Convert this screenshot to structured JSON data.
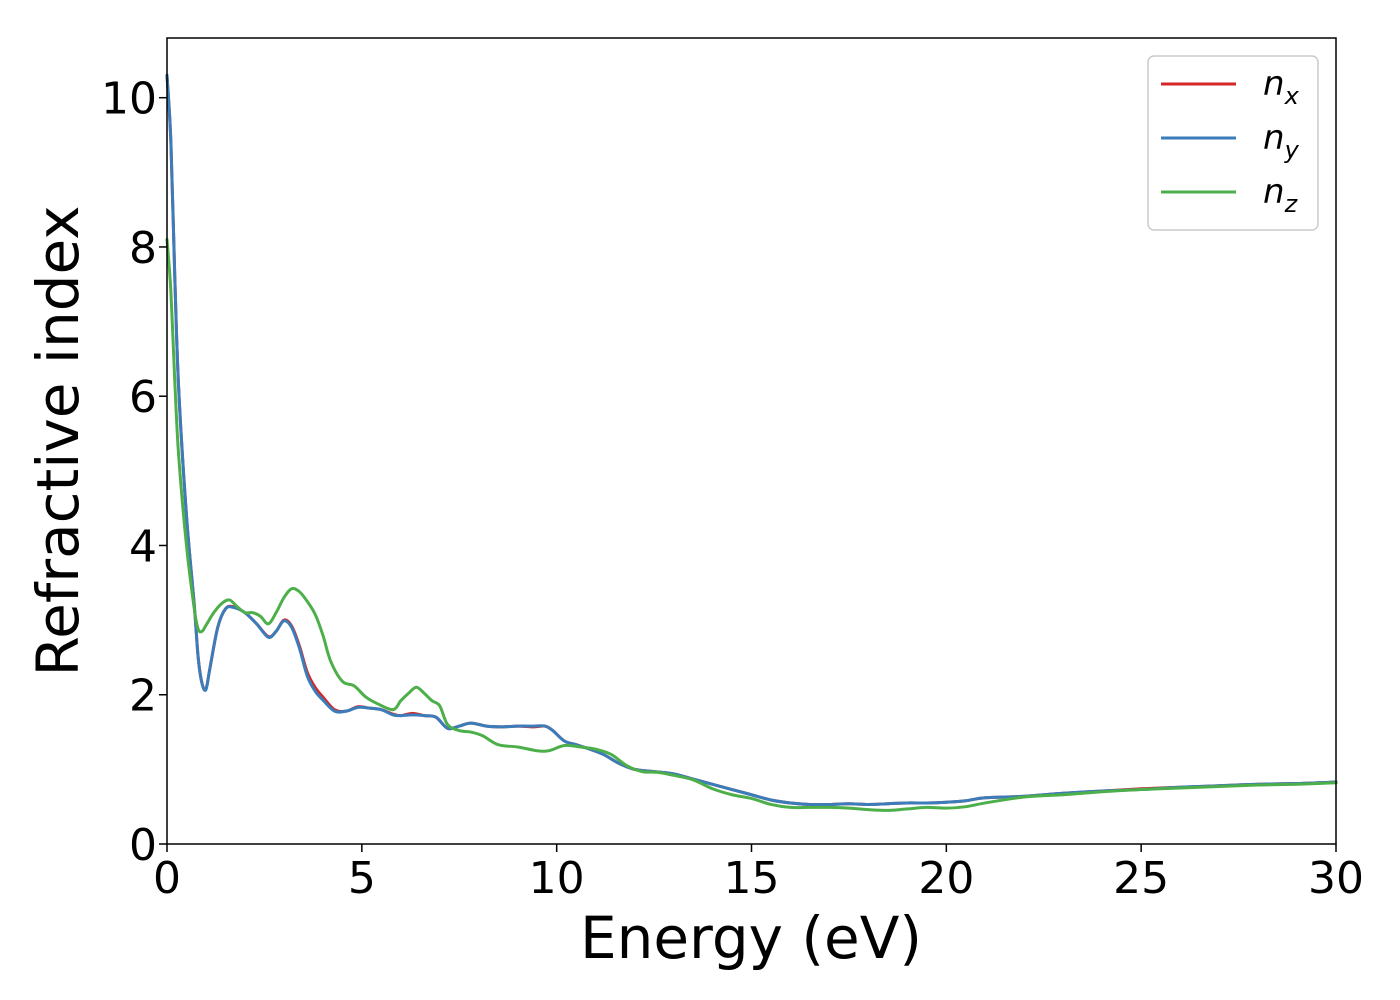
{
  "chart_data": {
    "type": "line",
    "title": "",
    "xlabel": "Energy (eV)",
    "ylabel": "Refractive index",
    "xlim": [
      0,
      30
    ],
    "ylim": [
      0,
      10.8
    ],
    "xticks": [
      0,
      5,
      10,
      15,
      20,
      25,
      30
    ],
    "yticks": [
      0,
      2,
      4,
      6,
      8,
      10
    ],
    "grid": false,
    "legend_position": "top-right",
    "series": [
      {
        "name": "n",
        "subscript": "x",
        "color": "#d62728",
        "x": [
          0,
          0.1,
          0.2,
          0.3,
          0.5,
          0.7,
          0.8,
          0.9,
          1.0,
          1.1,
          1.3,
          1.5,
          1.7,
          2.0,
          2.3,
          2.6,
          2.8,
          3.0,
          3.2,
          3.4,
          3.6,
          3.8,
          4.0,
          4.3,
          4.6,
          4.9,
          5.2,
          5.5,
          5.8,
          6.0,
          6.3,
          6.6,
          6.9,
          7.2,
          7.5,
          7.8,
          8.2,
          8.6,
          9.0,
          9.4,
          9.7,
          9.9,
          10.2,
          10.5,
          10.8,
          11.2,
          11.6,
          12.0,
          12.5,
          13.0,
          13.5,
          14.0,
          14.5,
          15.0,
          15.5,
          16.0,
          16.5,
          17.0,
          17.5,
          18.0,
          18.5,
          19.0,
          19.5,
          20.0,
          20.5,
          21.0,
          22.0,
          23.0,
          24.0,
          25.0,
          26.0,
          27.0,
          28.0,
          29.0,
          30.0
        ],
        "y": [
          10.3,
          9.4,
          7.6,
          6.1,
          4.4,
          3.2,
          2.5,
          2.15,
          2.08,
          2.35,
          2.9,
          3.15,
          3.18,
          3.1,
          2.95,
          2.78,
          2.85,
          3.0,
          2.92,
          2.65,
          2.3,
          2.1,
          1.97,
          1.8,
          1.78,
          1.84,
          1.82,
          1.8,
          1.74,
          1.72,
          1.75,
          1.72,
          1.7,
          1.55,
          1.58,
          1.62,
          1.58,
          1.57,
          1.58,
          1.57,
          1.58,
          1.52,
          1.38,
          1.33,
          1.28,
          1.2,
          1.08,
          1.0,
          0.97,
          0.94,
          0.87,
          0.8,
          0.73,
          0.66,
          0.59,
          0.55,
          0.53,
          0.53,
          0.54,
          0.53,
          0.54,
          0.55,
          0.55,
          0.56,
          0.58,
          0.62,
          0.64,
          0.68,
          0.71,
          0.74,
          0.76,
          0.78,
          0.8,
          0.81,
          0.83
        ]
      },
      {
        "name": "n",
        "subscript": "y",
        "color": "#3a7dba",
        "x": [
          0,
          0.1,
          0.2,
          0.3,
          0.5,
          0.7,
          0.8,
          0.9,
          1.0,
          1.1,
          1.3,
          1.5,
          1.7,
          2.0,
          2.3,
          2.6,
          2.8,
          3.0,
          3.2,
          3.4,
          3.6,
          3.8,
          4.0,
          4.3,
          4.6,
          4.9,
          5.2,
          5.5,
          5.8,
          6.0,
          6.3,
          6.6,
          6.9,
          7.2,
          7.5,
          7.8,
          8.2,
          8.6,
          9.0,
          9.4,
          9.7,
          9.9,
          10.2,
          10.5,
          10.8,
          11.2,
          11.6,
          12.0,
          12.5,
          13.0,
          13.5,
          14.0,
          14.5,
          15.0,
          15.5,
          16.0,
          16.5,
          17.0,
          17.5,
          18.0,
          18.5,
          19.0,
          19.5,
          20.0,
          20.5,
          21.0,
          22.0,
          23.0,
          24.0,
          25.0,
          26.0,
          27.0,
          28.0,
          29.0,
          30.0
        ],
        "y": [
          10.3,
          9.4,
          7.6,
          6.1,
          4.4,
          3.2,
          2.5,
          2.15,
          2.07,
          2.35,
          2.9,
          3.15,
          3.17,
          3.1,
          2.95,
          2.77,
          2.85,
          2.99,
          2.9,
          2.62,
          2.25,
          2.05,
          1.93,
          1.78,
          1.78,
          1.83,
          1.82,
          1.8,
          1.73,
          1.72,
          1.73,
          1.72,
          1.7,
          1.55,
          1.58,
          1.62,
          1.58,
          1.57,
          1.58,
          1.58,
          1.58,
          1.52,
          1.38,
          1.33,
          1.28,
          1.2,
          1.08,
          1.0,
          0.97,
          0.94,
          0.87,
          0.8,
          0.73,
          0.66,
          0.59,
          0.55,
          0.53,
          0.53,
          0.54,
          0.53,
          0.54,
          0.55,
          0.55,
          0.56,
          0.58,
          0.62,
          0.64,
          0.68,
          0.71,
          0.73,
          0.76,
          0.78,
          0.8,
          0.81,
          0.83
        ]
      },
      {
        "name": "n",
        "subscript": "z",
        "color": "#4daf4a",
        "x": [
          0,
          0.1,
          0.2,
          0.3,
          0.5,
          0.7,
          0.8,
          0.9,
          1.0,
          1.2,
          1.4,
          1.6,
          1.8,
          2.0,
          2.2,
          2.4,
          2.6,
          2.8,
          3.0,
          3.2,
          3.4,
          3.6,
          3.8,
          4.0,
          4.2,
          4.5,
          4.8,
          5.1,
          5.4,
          5.8,
          6.0,
          6.2,
          6.4,
          6.6,
          6.8,
          7.0,
          7.2,
          7.5,
          7.8,
          8.1,
          8.5,
          9.0,
          9.5,
          9.8,
          10.2,
          10.6,
          11.0,
          11.4,
          11.8,
          12.2,
          12.6,
          13.0,
          13.5,
          14.0,
          14.5,
          15.0,
          15.5,
          16.0,
          16.5,
          17.0,
          17.5,
          18.0,
          18.5,
          19.0,
          19.5,
          20.0,
          20.5,
          21.0,
          22.0,
          23.0,
          24.0,
          25.0,
          26.0,
          27.0,
          28.0,
          29.0,
          30.0
        ],
        "y": [
          8.1,
          7.4,
          6.2,
          5.2,
          4.0,
          3.15,
          2.88,
          2.85,
          2.93,
          3.1,
          3.22,
          3.27,
          3.18,
          3.1,
          3.1,
          3.05,
          2.95,
          3.1,
          3.3,
          3.42,
          3.38,
          3.25,
          3.08,
          2.8,
          2.45,
          2.18,
          2.12,
          1.97,
          1.88,
          1.8,
          1.92,
          2.02,
          2.1,
          2.02,
          1.92,
          1.85,
          1.6,
          1.52,
          1.5,
          1.45,
          1.33,
          1.3,
          1.25,
          1.25,
          1.32,
          1.3,
          1.27,
          1.2,
          1.05,
          0.97,
          0.96,
          0.92,
          0.86,
          0.74,
          0.66,
          0.61,
          0.53,
          0.49,
          0.49,
          0.49,
          0.48,
          0.46,
          0.45,
          0.47,
          0.49,
          0.48,
          0.5,
          0.55,
          0.63,
          0.66,
          0.7,
          0.73,
          0.75,
          0.77,
          0.79,
          0.8,
          0.82
        ]
      }
    ]
  }
}
